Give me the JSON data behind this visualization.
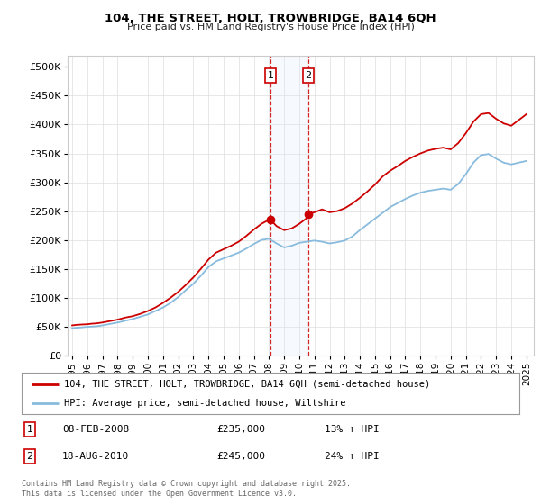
{
  "title": "104, THE STREET, HOLT, TROWBRIDGE, BA14 6QH",
  "subtitle": "Price paid vs. HM Land Registry's House Price Index (HPI)",
  "ylabel_ticks": [
    "£0",
    "£50K",
    "£100K",
    "£150K",
    "£200K",
    "£250K",
    "£300K",
    "£350K",
    "£400K",
    "£450K",
    "£500K"
  ],
  "ytick_values": [
    0,
    50000,
    100000,
    150000,
    200000,
    250000,
    300000,
    350000,
    400000,
    450000,
    500000
  ],
  "ylim": [
    0,
    520000
  ],
  "xlim_start": 1994.7,
  "xlim_end": 2025.5,
  "transaction1_x": 2008.1,
  "transaction1_y": 235000,
  "transaction2_x": 2010.6,
  "transaction2_y": 245000,
  "transaction1_date": "08-FEB-2008",
  "transaction1_price": "£235,000",
  "transaction1_hpi": "13% ↑ HPI",
  "transaction2_date": "18-AUG-2010",
  "transaction2_price": "£245,000",
  "transaction2_hpi": "24% ↑ HPI",
  "shade_x1": 2008.1,
  "shade_x2": 2010.6,
  "property_line_color": "#cc0000",
  "hpi_line_color": "#88bbdd",
  "shade_color": "#ddeeff",
  "legend_property": "104, THE STREET, HOLT, TROWBRIDGE, BA14 6QH (semi-detached house)",
  "legend_hpi": "HPI: Average price, semi-detached house, Wiltshire",
  "footer": "Contains HM Land Registry data © Crown copyright and database right 2025.\nThis data is licensed under the Open Government Licence v3.0.",
  "background_color": "#ffffff",
  "grid_color": "#dddddd",
  "xticks": [
    1995,
    1996,
    1997,
    1998,
    1999,
    2000,
    2001,
    2002,
    2003,
    2004,
    2005,
    2006,
    2007,
    2008,
    2009,
    2010,
    2011,
    2012,
    2013,
    2014,
    2015,
    2016,
    2017,
    2018,
    2019,
    2020,
    2021,
    2022,
    2023,
    2024,
    2025
  ],
  "property_prices": [
    [
      1995.0,
      52000
    ],
    [
      1995.3,
      53000
    ],
    [
      1995.6,
      53500
    ],
    [
      1996.0,
      54000
    ],
    [
      1996.3,
      55000
    ],
    [
      1996.6,
      55500
    ],
    [
      1997.0,
      57000
    ],
    [
      1997.5,
      59500
    ],
    [
      1998.0,
      62000
    ],
    [
      1998.5,
      65500
    ],
    [
      1999.0,
      68000
    ],
    [
      1999.5,
      72000
    ],
    [
      2000.0,
      77000
    ],
    [
      2000.5,
      83000
    ],
    [
      2001.0,
      91000
    ],
    [
      2001.5,
      100000
    ],
    [
      2002.0,
      110000
    ],
    [
      2002.5,
      122000
    ],
    [
      2003.0,
      135000
    ],
    [
      2003.5,
      150000
    ],
    [
      2004.0,
      166000
    ],
    [
      2004.5,
      178000
    ],
    [
      2005.0,
      184000
    ],
    [
      2005.5,
      190000
    ],
    [
      2006.0,
      197000
    ],
    [
      2006.5,
      207000
    ],
    [
      2007.0,
      218000
    ],
    [
      2007.5,
      228000
    ],
    [
      2008.0,
      235000
    ],
    [
      2008.1,
      235000
    ],
    [
      2008.5,
      224000
    ],
    [
      2009.0,
      217000
    ],
    [
      2009.5,
      220000
    ],
    [
      2010.0,
      228000
    ],
    [
      2010.5,
      238000
    ],
    [
      2010.6,
      245000
    ],
    [
      2011.0,
      248000
    ],
    [
      2011.5,
      253000
    ],
    [
      2012.0,
      248000
    ],
    [
      2012.5,
      250000
    ],
    [
      2013.0,
      255000
    ],
    [
      2013.5,
      263000
    ],
    [
      2014.0,
      273000
    ],
    [
      2014.5,
      284000
    ],
    [
      2015.0,
      296000
    ],
    [
      2015.5,
      310000
    ],
    [
      2016.0,
      320000
    ],
    [
      2016.5,
      328000
    ],
    [
      2017.0,
      337000
    ],
    [
      2017.5,
      344000
    ],
    [
      2018.0,
      350000
    ],
    [
      2018.5,
      355000
    ],
    [
      2019.0,
      358000
    ],
    [
      2019.5,
      360000
    ],
    [
      2020.0,
      357000
    ],
    [
      2020.5,
      368000
    ],
    [
      2021.0,
      385000
    ],
    [
      2021.5,
      405000
    ],
    [
      2022.0,
      418000
    ],
    [
      2022.5,
      420000
    ],
    [
      2023.0,
      410000
    ],
    [
      2023.5,
      402000
    ],
    [
      2024.0,
      398000
    ],
    [
      2024.5,
      408000
    ],
    [
      2025.0,
      418000
    ]
  ],
  "hpi_prices": [
    [
      1995.0,
      47000
    ],
    [
      1995.3,
      48000
    ],
    [
      1995.6,
      48500
    ],
    [
      1996.0,
      49500
    ],
    [
      1996.3,
      50000
    ],
    [
      1996.6,
      50500
    ],
    [
      1997.0,
      52000
    ],
    [
      1997.5,
      54500
    ],
    [
      1998.0,
      57000
    ],
    [
      1998.5,
      60000
    ],
    [
      1999.0,
      63000
    ],
    [
      1999.5,
      67000
    ],
    [
      2000.0,
      71000
    ],
    [
      2000.5,
      77000
    ],
    [
      2001.0,
      83000
    ],
    [
      2001.5,
      91000
    ],
    [
      2002.0,
      101000
    ],
    [
      2002.5,
      113000
    ],
    [
      2003.0,
      124000
    ],
    [
      2003.5,
      138000
    ],
    [
      2004.0,
      153000
    ],
    [
      2004.5,
      163000
    ],
    [
      2005.0,
      168000
    ],
    [
      2005.5,
      173000
    ],
    [
      2006.0,
      178000
    ],
    [
      2006.5,
      185000
    ],
    [
      2007.0,
      193000
    ],
    [
      2007.5,
      200000
    ],
    [
      2008.0,
      202000
    ],
    [
      2008.5,
      194000
    ],
    [
      2009.0,
      187000
    ],
    [
      2009.5,
      190000
    ],
    [
      2010.0,
      195000
    ],
    [
      2010.5,
      197000
    ],
    [
      2011.0,
      199000
    ],
    [
      2011.5,
      197000
    ],
    [
      2012.0,
      194000
    ],
    [
      2012.5,
      196000
    ],
    [
      2013.0,
      199000
    ],
    [
      2013.5,
      206000
    ],
    [
      2014.0,
      217000
    ],
    [
      2014.5,
      227000
    ],
    [
      2015.0,
      237000
    ],
    [
      2015.5,
      247000
    ],
    [
      2016.0,
      257000
    ],
    [
      2016.5,
      264000
    ],
    [
      2017.0,
      271000
    ],
    [
      2017.5,
      277000
    ],
    [
      2018.0,
      282000
    ],
    [
      2018.5,
      285000
    ],
    [
      2019.0,
      287000
    ],
    [
      2019.5,
      289000
    ],
    [
      2020.0,
      287000
    ],
    [
      2020.5,
      297000
    ],
    [
      2021.0,
      314000
    ],
    [
      2021.5,
      334000
    ],
    [
      2022.0,
      347000
    ],
    [
      2022.5,
      349000
    ],
    [
      2023.0,
      341000
    ],
    [
      2023.5,
      334000
    ],
    [
      2024.0,
      331000
    ],
    [
      2024.5,
      334000
    ],
    [
      2025.0,
      337000
    ]
  ]
}
